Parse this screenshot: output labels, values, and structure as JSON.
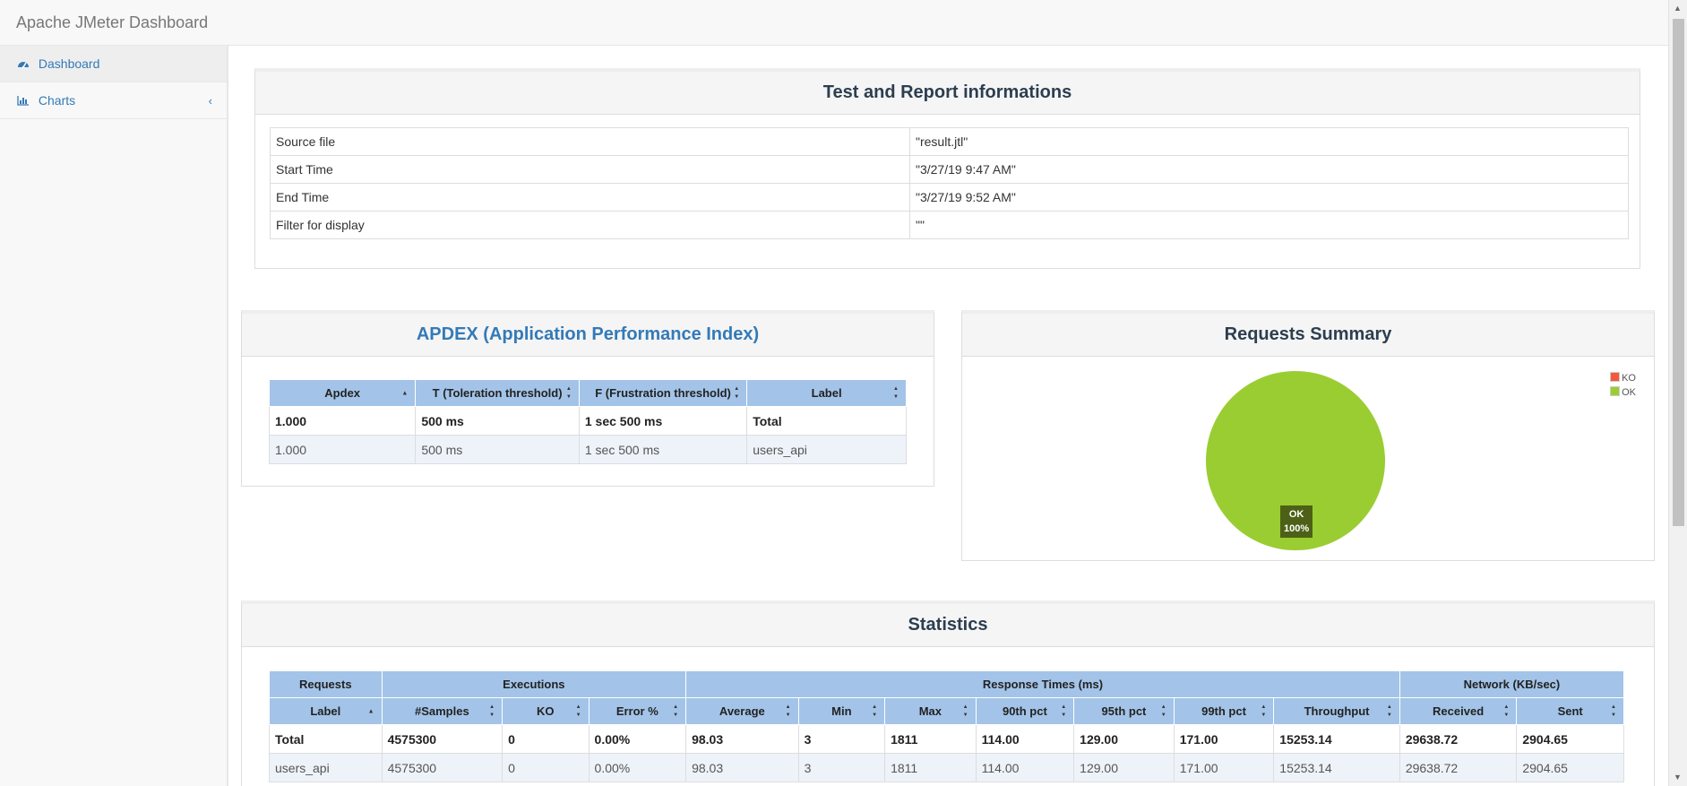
{
  "app": {
    "title": "Apache JMeter Dashboard"
  },
  "sidebar": {
    "items": [
      {
        "label": "Dashboard",
        "icon": "dashboard-icon"
      },
      {
        "label": "Charts",
        "icon": "bar-chart-icon"
      }
    ]
  },
  "info": {
    "title": "Test and Report informations",
    "rows": [
      {
        "key": "Source file",
        "value": "\"result.jtl\""
      },
      {
        "key": "Start Time",
        "value": "\"3/27/19 9:47 AM\""
      },
      {
        "key": "End Time",
        "value": "\"3/27/19 9:52 AM\""
      },
      {
        "key": "Filter for display",
        "value": "\"\""
      }
    ]
  },
  "apdex": {
    "title": "APDEX (Application Performance Index)",
    "headers": [
      "Apdex",
      "T (Toleration threshold)",
      "F (Frustration threshold)",
      "Label"
    ],
    "rows": [
      [
        "1.000",
        "500 ms",
        "1 sec 500 ms",
        "Total"
      ],
      [
        "1.000",
        "500 ms",
        "1 sec 500 ms",
        "users_api"
      ]
    ]
  },
  "summary": {
    "title": "Requests Summary",
    "legend": [
      {
        "label": "KO",
        "color": "#f15a3a"
      },
      {
        "label": "OK",
        "color": "#9acd32"
      }
    ],
    "pie_label_name": "OK",
    "pie_label_pct": "100%"
  },
  "chart_data": {
    "type": "pie",
    "slices": [
      {
        "label": "KO",
        "value": 0
      },
      {
        "label": "OK",
        "value": 100
      }
    ]
  },
  "stats": {
    "title": "Statistics",
    "groups": [
      "Requests",
      "Executions",
      "Response Times (ms)",
      "Network (KB/sec)"
    ],
    "headers": [
      "Label",
      "#Samples",
      "KO",
      "Error %",
      "Average",
      "Min",
      "Max",
      "90th pct",
      "95th pct",
      "99th pct",
      "Throughput",
      "Received",
      "Sent"
    ],
    "rows": [
      [
        "Total",
        "4575300",
        "0",
        "0.00%",
        "98.03",
        "3",
        "1811",
        "114.00",
        "129.00",
        "171.00",
        "15253.14",
        "29638.72",
        "2904.65"
      ],
      [
        "users_api",
        "4575300",
        "0",
        "0.00%",
        "98.03",
        "3",
        "1811",
        "114.00",
        "129.00",
        "171.00",
        "15253.14",
        "29638.72",
        "2904.65"
      ]
    ]
  }
}
